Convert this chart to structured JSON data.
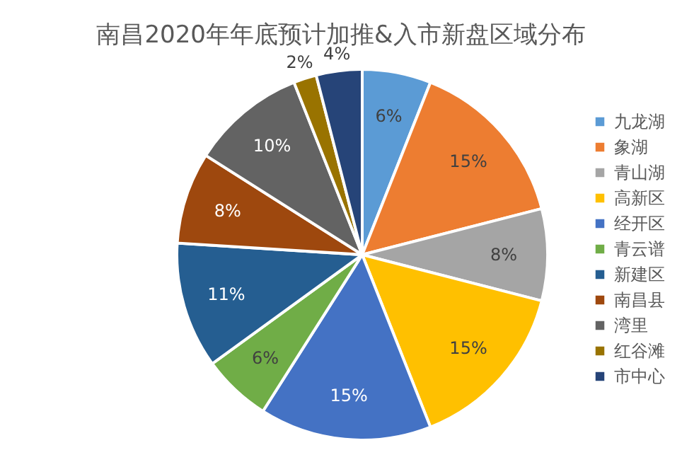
{
  "chart_data": {
    "type": "pie",
    "title": "南昌2020年年底预计加推&入市新盘区域分布",
    "categories": [
      "九龙湖",
      "象湖",
      "青山湖",
      "高新区",
      "经开区",
      "青云谱",
      "新建区",
      "南昌县",
      "湾里",
      "红谷滩",
      "市中心"
    ],
    "values": [
      6,
      15,
      8,
      15,
      15,
      6,
      11,
      8,
      10,
      2,
      4
    ],
    "value_labels": [
      "6%",
      "15%",
      "8%",
      "15%",
      "15%",
      "6%",
      "11%",
      "8%",
      "10%",
      "2%",
      "4%"
    ],
    "colors": [
      "#5b9bd5",
      "#ed7d31",
      "#a5a5a5",
      "#ffc000",
      "#4472c4",
      "#70ad47",
      "#255e91",
      "#9e480e",
      "#636363",
      "#997300",
      "#264478"
    ],
    "legend": "right"
  }
}
